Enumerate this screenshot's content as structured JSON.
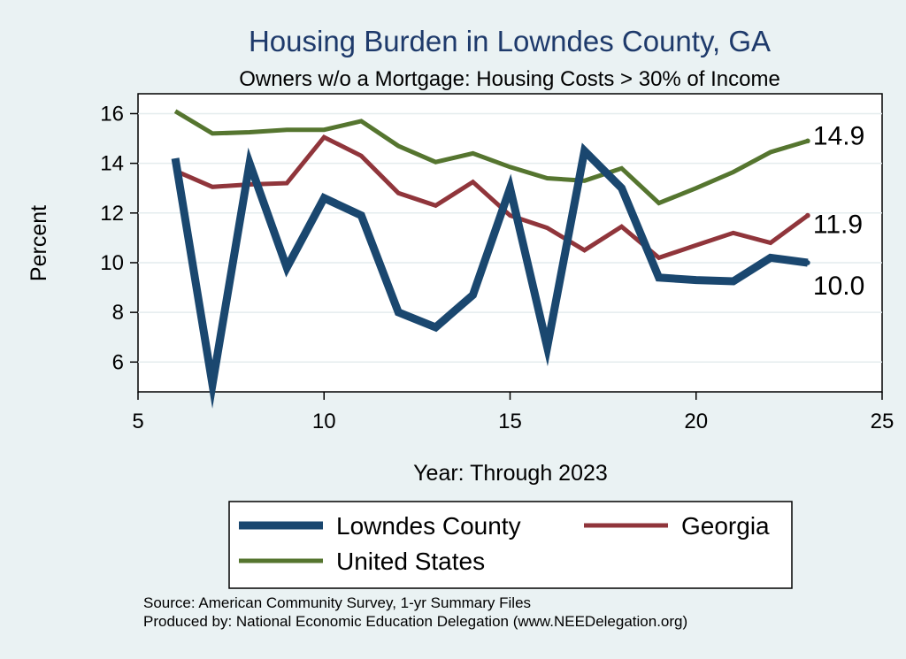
{
  "chart_data": {
    "type": "line",
    "title": "Housing Burden in Lowndes County, GA",
    "subtitle": "Owners w/o a Mortgage: Housing Costs > 30% of Income",
    "xlabel": "Year: Through 2023",
    "ylabel": "Percent",
    "xlim": [
      5,
      25
    ],
    "ylim": [
      4.8,
      16.8
    ],
    "xticks": [
      5,
      10,
      15,
      20,
      25
    ],
    "yticks": [
      6,
      8,
      10,
      12,
      14,
      16
    ],
    "grid": true,
    "series": [
      {
        "name": "Lowndes County",
        "color": "#1a476f",
        "x": [
          6,
          7,
          8,
          9,
          10,
          11,
          12,
          13,
          14,
          15,
          16,
          17,
          18,
          19,
          20,
          21,
          22,
          23
        ],
        "values": [
          14.2,
          5.1,
          14.0,
          9.8,
          12.6,
          11.9,
          8.0,
          7.4,
          8.7,
          13.0,
          6.6,
          14.5,
          13.0,
          9.4,
          9.3,
          9.25,
          10.2,
          10.0
        ],
        "end_label": "10.0"
      },
      {
        "name": "Georgia",
        "color": "#90353b",
        "x": [
          6,
          7,
          8,
          9,
          10,
          11,
          12,
          13,
          14,
          15,
          16,
          17,
          18,
          19,
          20,
          21,
          22,
          23
        ],
        "values": [
          13.7,
          13.05,
          13.15,
          13.2,
          15.05,
          14.3,
          12.8,
          12.3,
          13.25,
          11.9,
          11.4,
          10.5,
          11.45,
          10.2,
          10.7,
          11.2,
          10.8,
          11.9
        ],
        "end_label": "11.9"
      },
      {
        "name": "United States",
        "color": "#55752f",
        "x": [
          6,
          7,
          8,
          9,
          10,
          11,
          12,
          13,
          14,
          15,
          16,
          17,
          18,
          19,
          20,
          21,
          22,
          23
        ],
        "values": [
          16.1,
          15.2,
          15.25,
          15.35,
          15.35,
          15.7,
          14.7,
          14.05,
          14.4,
          13.85,
          13.4,
          13.3,
          13.8,
          12.4,
          13.0,
          13.65,
          14.45,
          14.9
        ],
        "end_label": "14.9"
      }
    ]
  },
  "footer": {
    "source": "Source: American Community Survey, 1-yr Summary Files",
    "producer": "Produced by: National Economic Education Delegation (www.NEEDelegation.org)"
  }
}
